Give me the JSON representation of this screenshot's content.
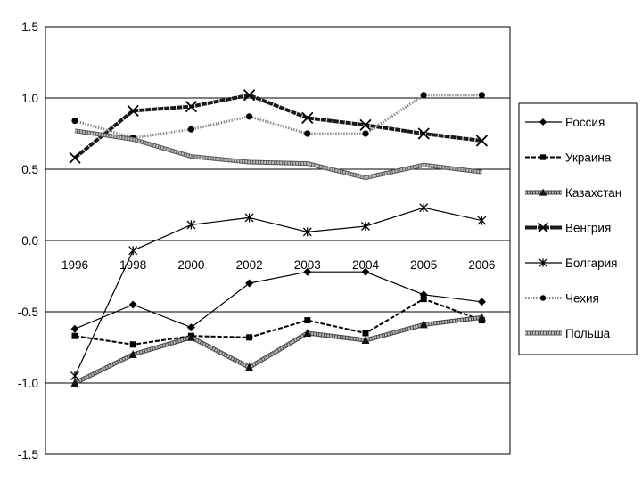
{
  "chart_data": {
    "type": "line",
    "title": "",
    "xlabel": "",
    "ylabel": "",
    "x": [
      "1996",
      "1998",
      "2000",
      "2002",
      "2003",
      "2004",
      "2005",
      "2006"
    ],
    "y_ticks": [
      "1.5",
      "1.0",
      "0.5",
      "0.0",
      "-0.5",
      "-1.0",
      "-1.5"
    ],
    "y_tick_values": [
      1.5,
      1.0,
      0.5,
      0.0,
      -0.5,
      -1.0,
      -1.5
    ],
    "ylim": [
      -1.5,
      1.5
    ],
    "grid": "horizontal",
    "legend_position": "right",
    "series": [
      {
        "name": "Россия",
        "values": [
          -0.62,
          -0.45,
          -0.61,
          -0.3,
          -0.22,
          -0.22,
          -0.38,
          -0.43
        ],
        "color": "#000000",
        "marker": "diamond",
        "line": "solid-thin"
      },
      {
        "name": "Украина",
        "values": [
          -0.67,
          -0.73,
          -0.67,
          -0.68,
          -0.56,
          -0.65,
          -0.41,
          -0.56
        ],
        "color": "#000000",
        "marker": "square",
        "line": "dashed"
      },
      {
        "name": "Казахстан",
        "values": [
          -1.0,
          -0.8,
          -0.68,
          -0.89,
          -0.65,
          -0.7,
          -0.59,
          -0.54
        ],
        "color": "#8c8c8c",
        "marker": "triangle",
        "line": "hatched"
      },
      {
        "name": "Венгрия",
        "values": [
          0.58,
          0.91,
          0.94,
          1.02,
          0.86,
          0.81,
          0.75,
          0.7
        ],
        "color": "#1a1a1a",
        "marker": "x",
        "line": "thick-dashed"
      },
      {
        "name": "Болгария",
        "values": [
          -0.95,
          -0.07,
          0.11,
          0.16,
          0.06,
          0.1,
          0.23,
          0.14
        ],
        "color": "#000000",
        "marker": "star",
        "line": "solid-thin"
      },
      {
        "name": "Чехия",
        "values": [
          0.84,
          0.72,
          0.78,
          0.87,
          0.75,
          0.75,
          1.02,
          1.02
        ],
        "color": "#9a9a9a",
        "marker": "circle",
        "line": "dotted"
      },
      {
        "name": "Польша",
        "values": [
          0.77,
          0.71,
          0.59,
          0.55,
          0.54,
          0.44,
          0.53,
          0.48
        ],
        "color": "#9a9a9a",
        "marker": "none",
        "line": "hatched-thick"
      }
    ]
  }
}
